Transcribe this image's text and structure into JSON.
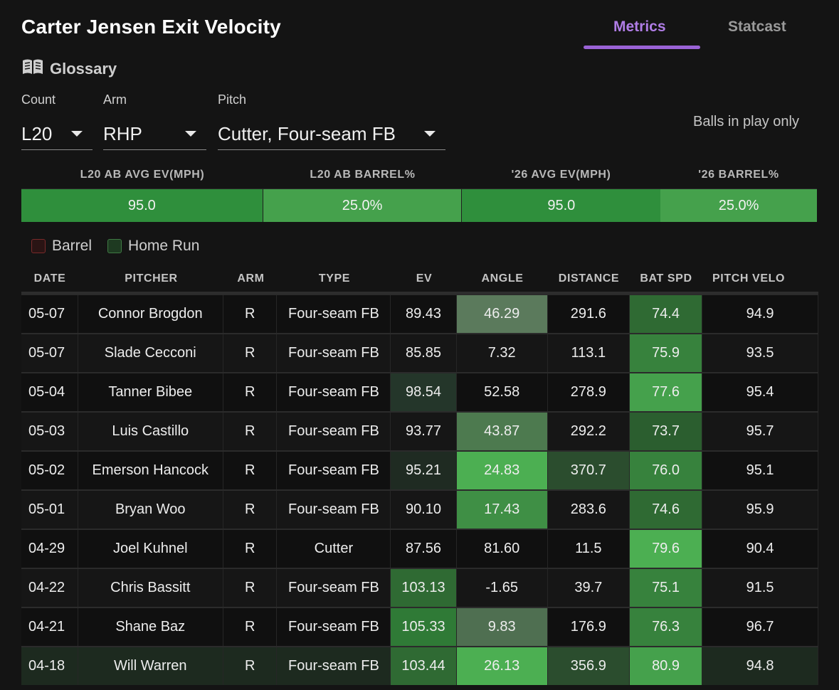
{
  "title": "Carter Jensen Exit Velocity",
  "tabs": [
    {
      "label": "Metrics",
      "active": true
    },
    {
      "label": "Statcast",
      "active": false
    }
  ],
  "glossary": {
    "label": "Glossary",
    "icon": "book-icon"
  },
  "filters": {
    "count": {
      "label": "Count",
      "value": "L20"
    },
    "arm": {
      "label": "Arm",
      "value": "RHP"
    },
    "pitch": {
      "label": "Pitch",
      "value": "Cutter, Four-seam FB"
    }
  },
  "balls_in_play": "Balls in play only",
  "summary": {
    "headers": [
      "L20 AB AVG EV(MPH)",
      "L20 AB BARREL%",
      "'26 AVG EV(MPH)",
      "'26 BARREL%"
    ],
    "values": [
      "95.0",
      "25.0%",
      "95.0",
      "25.0%"
    ],
    "colors": [
      "#2f8f3c",
      "#45a14c",
      "#2f8f3c",
      "#45a14c"
    ]
  },
  "legend": [
    {
      "label": "Barrel",
      "color": "#5a1f1f"
    },
    {
      "label": "Home Run",
      "color": "#244a28"
    }
  ],
  "table": {
    "headers": [
      "DATE",
      "PITCHER",
      "ARM",
      "TYPE",
      "EV",
      "ANGLE",
      "DISTANCE",
      "BAT SPD",
      "PITCH VELO"
    ],
    "rows": [
      {
        "cells": [
          "05-07",
          "Connor Brogdon",
          "R",
          "Four-seam FB",
          "89.43",
          "46.29",
          "291.6",
          "74.4",
          "94.9"
        ],
        "colors": [
          "",
          "",
          "",
          "",
          "",
          "#5b7a5c",
          "",
          "#2f6a33",
          ""
        ]
      },
      {
        "cells": [
          "05-07",
          "Slade Cecconi",
          "R",
          "Four-seam FB",
          "85.85",
          "7.32",
          "113.1",
          "75.9",
          "93.5"
        ],
        "colors": [
          "",
          "",
          "",
          "",
          "",
          "",
          "",
          "#37823d",
          ""
        ]
      },
      {
        "cells": [
          "05-04",
          "Tanner Bibee",
          "R",
          "Four-seam FB",
          "98.54",
          "52.58",
          "278.9",
          "77.6",
          "95.4"
        ],
        "colors": [
          "",
          "",
          "",
          "",
          "#24362a",
          "",
          "",
          "#45a14c",
          ""
        ]
      },
      {
        "cells": [
          "05-03",
          "Luis Castillo",
          "R",
          "Four-seam FB",
          "93.77",
          "43.87",
          "292.2",
          "73.7",
          "95.7"
        ],
        "colors": [
          "",
          "",
          "",
          "",
          "",
          "#4d7a4f",
          "",
          "#2b5e2f",
          ""
        ]
      },
      {
        "cells": [
          "05-02",
          "Emerson Hancock",
          "R",
          "Four-seam FB",
          "95.21",
          "24.83",
          "370.7",
          "76.0",
          "95.1"
        ],
        "colors": [
          "",
          "",
          "",
          "",
          "#1f2b22",
          "#4caf52",
          "#2b4d2e",
          "#37823d",
          ""
        ]
      },
      {
        "cells": [
          "05-01",
          "Bryan Woo",
          "R",
          "Four-seam FB",
          "90.10",
          "17.43",
          "283.6",
          "74.6",
          "95.9"
        ],
        "colors": [
          "",
          "",
          "",
          "",
          "",
          "#3f8f45",
          "",
          "#2f6a33",
          ""
        ]
      },
      {
        "cells": [
          "04-29",
          "Joel Kuhnel",
          "R",
          "Cutter",
          "87.56",
          "81.60",
          "11.5",
          "79.6",
          "90.4"
        ],
        "colors": [
          "",
          "",
          "",
          "",
          "",
          "",
          "",
          "#4caf52",
          ""
        ]
      },
      {
        "cells": [
          "04-22",
          "Chris Bassitt",
          "R",
          "Four-seam FB",
          "103.13",
          "-1.65",
          "39.7",
          "75.1",
          "91.5"
        ],
        "colors": [
          "",
          "",
          "",
          "",
          "#2f6a33",
          "",
          "",
          "#37823d",
          ""
        ]
      },
      {
        "cells": [
          "04-21",
          "Shane Baz",
          "R",
          "Four-seam FB",
          "105.33",
          "9.83",
          "176.9",
          "76.3",
          "96.7"
        ],
        "colors": [
          "",
          "",
          "",
          "",
          "#2f7a36",
          "#4f6f51",
          "",
          "#37823d",
          ""
        ]
      },
      {
        "cells": [
          "04-18",
          "Will Warren",
          "R",
          "Four-seam FB",
          "103.44",
          "26.13",
          "356.9",
          "80.9",
          "94.8"
        ],
        "colors": [
          "#1d2a1f",
          "#1d2a1f",
          "#1d2a1f",
          "#1d2a1f",
          "#2f6a33",
          "#4caf52",
          "#2b4d2e",
          "#45a14c",
          "#1d2a1f"
        ]
      }
    ]
  }
}
